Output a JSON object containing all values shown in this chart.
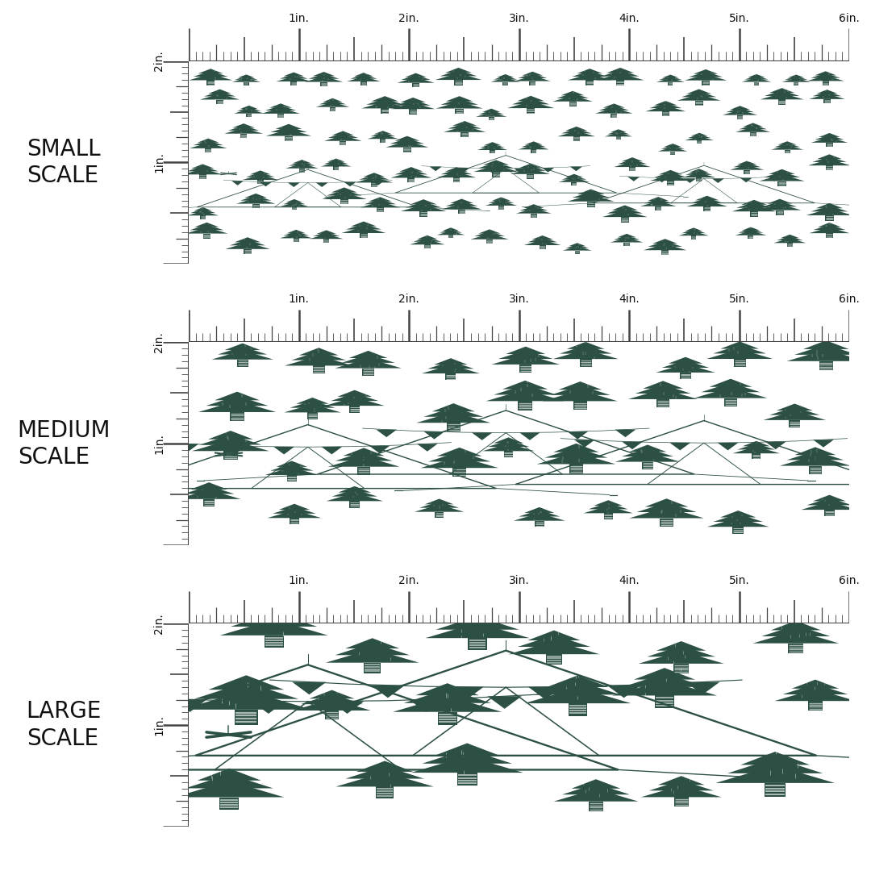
{
  "background_color": "#ffffff",
  "fabric_bg": "#c5d9c8",
  "dark_green": "#2d5045",
  "ruler_color": "#444444",
  "label_color": "#111111",
  "panels": [
    {
      "label": "SMALL\nSCALE",
      "tree_scale": 1.0
    },
    {
      "label": "MEDIUM\nSCALE",
      "tree_scale": 1.7
    },
    {
      "label": "LARGE\nSCALE",
      "tree_scale": 2.8
    }
  ],
  "ruler_inches": 6,
  "tick_label_fontsize": 10,
  "panel_label_fontsize": 20,
  "fig_width": 10.8,
  "fig_height": 10.8
}
